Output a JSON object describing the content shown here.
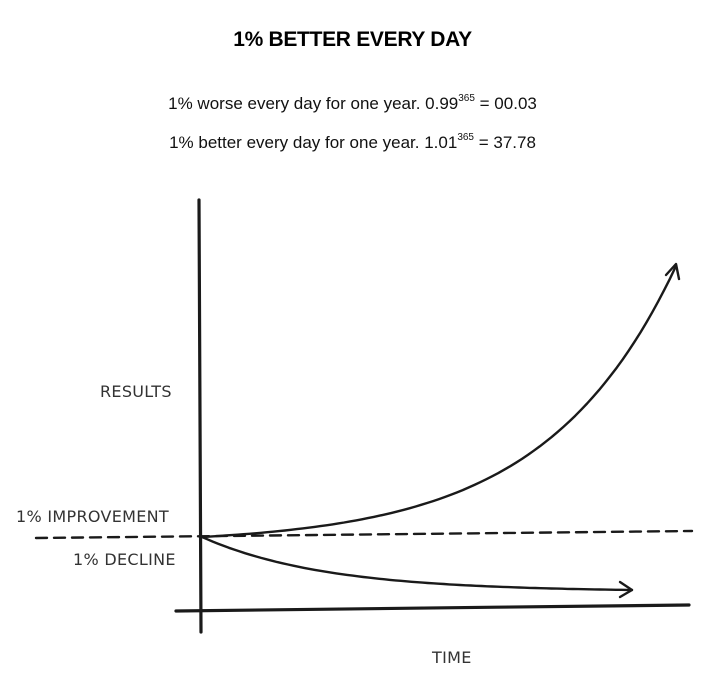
{
  "title": "1% BETTER EVERY DAY",
  "formula_worse": {
    "text": "1% worse every day for one year. 0.99",
    "exponent": "365",
    "result": " = 00.03"
  },
  "formula_better": {
    "text": "1% better every day for one year. 1.01",
    "exponent": "365",
    "result": " = 37.78"
  },
  "chart_data": {
    "type": "line",
    "xlabel": "TIME",
    "ylabel": "RESULTS",
    "grid": false,
    "annotations": [
      "1% IMPROVEMENT",
      "1% DECLINE"
    ],
    "series": [
      {
        "name": "1% IMPROVEMENT",
        "days": [
          0,
          365
        ],
        "values": [
          1.0,
          37.78
        ]
      },
      {
        "name": "1% DECLINE",
        "days": [
          0,
          365
        ],
        "values": [
          1.0,
          0.03
        ]
      }
    ],
    "baseline_value": 1.0,
    "stroke_color": "#1a1a1a"
  }
}
